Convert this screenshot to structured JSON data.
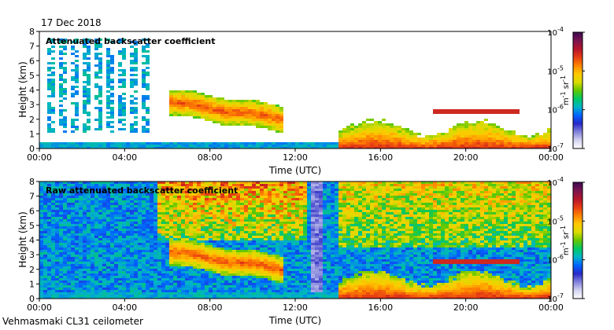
{
  "header": {
    "date": "17 Dec 2018"
  },
  "footer": {
    "instrument": "Vehmasmaki CL31 ceilometer"
  },
  "colorbar": {
    "tick_labels": [
      "10",
      "10",
      "10",
      "10"
    ],
    "tick_exponents": [
      "-4",
      "-5",
      "-6",
      "-7"
    ],
    "unit_main": "m",
    "unit_exp1": "-1",
    "unit_mid": " sr",
    "unit_exp2": "-1",
    "colors": [
      "#3c0a50",
      "#7a1450",
      "#b4142d",
      "#e63c14",
      "#ff8200",
      "#ffc800",
      "#dcdc00",
      "#64c800",
      "#00c864",
      "#00b4c8",
      "#0064ff",
      "#2828c8",
      "#8282dc",
      "#d2d2f0",
      "#ffffff"
    ]
  },
  "chart_data": [
    {
      "type": "heatmap",
      "title": "Attenuated backscatter coefficient",
      "xlabel": "Time (UTC)",
      "ylabel": "Height (km)",
      "xlim_hours": [
        0,
        24
      ],
      "ylim_km": [
        0,
        8
      ],
      "x_ticks": [
        "00:00",
        "04:00",
        "08:00",
        "12:00",
        "16:00",
        "20:00",
        "00:00"
      ],
      "y_ticks": [
        "0",
        "1",
        "2",
        "3",
        "4",
        "5",
        "6",
        "7",
        "8"
      ],
      "colorbar_range": [
        "1e-7",
        "1e-4"
      ],
      "colorbar_unit": "m-1 sr-1",
      "features": [
        {
          "name": "noise-streaks",
          "t_start": 0.3,
          "t_end": 5.2,
          "h_min": 1.0,
          "h_max": 7.5,
          "level": "1e-6.5"
        },
        {
          "name": "cloud-layer",
          "t_start": 6.0,
          "t_end": 11.4,
          "h_min": 1.7,
          "h_max": 3.8,
          "level": "1e-5"
        },
        {
          "name": "boundary-layer",
          "t_start": 14.0,
          "t_end": 24.0,
          "h_min": 0.0,
          "h_max": 2.2,
          "level": "1e-5"
        },
        {
          "name": "upper-cloud",
          "t_start": 18.5,
          "t_end": 22.5,
          "h_min": 2.3,
          "h_max": 2.9,
          "level": "1e-4.5"
        }
      ]
    },
    {
      "type": "heatmap",
      "title": "Raw attenuated backscatter coefficient",
      "xlabel": "Time (UTC)",
      "ylabel": "Height (km)",
      "xlim_hours": [
        0,
        24
      ],
      "ylim_km": [
        0,
        8
      ],
      "x_ticks": [
        "00:00",
        "04:00",
        "08:00",
        "12:00",
        "16:00",
        "20:00",
        "00:00"
      ],
      "y_ticks": [
        "0",
        "1",
        "2",
        "3",
        "4",
        "5",
        "6",
        "7",
        "8"
      ],
      "colorbar_range": [
        "1e-7",
        "1e-4"
      ],
      "colorbar_unit": "m-1 sr-1",
      "features": [
        {
          "name": "background-noise",
          "t_start": 0.0,
          "t_end": 24.0,
          "h_min": 0.0,
          "h_max": 8.0,
          "level": "1e-6.5"
        },
        {
          "name": "cloud-layer",
          "t_start": 6.0,
          "t_end": 11.4,
          "h_min": 1.7,
          "h_max": 3.8,
          "level": "1e-5"
        },
        {
          "name": "boundary-layer",
          "t_start": 14.0,
          "t_end": 24.0,
          "h_min": 0.0,
          "h_max": 2.2,
          "level": "1e-5"
        }
      ]
    }
  ]
}
